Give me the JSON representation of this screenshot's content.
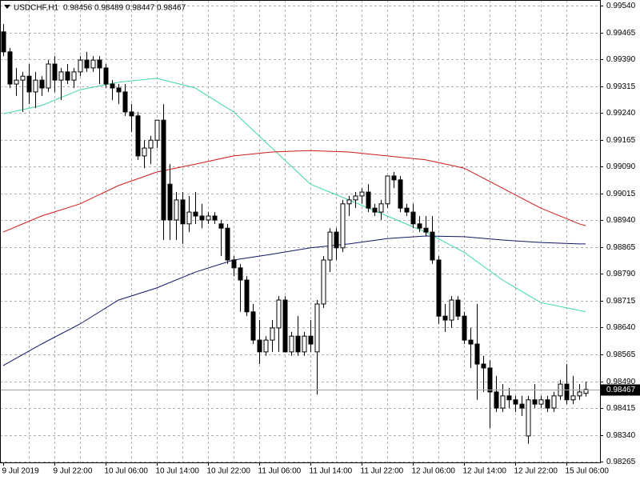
{
  "chart_data": {
    "type": "candlestick",
    "title": "USDCHF,H1",
    "categories": [
      "9 Jul 2019",
      null,
      null,
      null,
      null,
      null,
      null,
      null,
      "9 Jul 22:00",
      null,
      null,
      null,
      null,
      null,
      null,
      null,
      "10 Jul 06:00",
      null,
      null,
      null,
      null,
      null,
      null,
      null,
      "10 Jul 14:00",
      null,
      null,
      null,
      null,
      null,
      null,
      null,
      "10 Jul 22:00",
      null,
      null,
      null,
      null,
      null,
      null,
      null,
      "11 Jul 06:00",
      null,
      null,
      null,
      null,
      null,
      null,
      null,
      "11 Jul 14:00",
      null,
      null,
      null,
      null,
      null,
      null,
      null,
      "11 Jul 22:00",
      null,
      null,
      null,
      null,
      null,
      null,
      null,
      "12 Jul 06:00",
      null,
      null,
      null,
      null,
      null,
      null,
      null,
      "12 Jul 14:00",
      null,
      null,
      null,
      null,
      null,
      null,
      null,
      "12 Jul 22:00",
      null,
      null,
      null,
      null,
      null,
      null,
      null,
      "15 Jul 06:00",
      null,
      null,
      null
    ],
    "open": [
      0.99467,
      0.99411,
      0.99321,
      0.99332,
      0.99343,
      0.99299,
      0.99332,
      0.9931,
      0.99377,
      0.99332,
      0.99355,
      0.99332,
      0.99355,
      0.99388,
      0.99366,
      0.99388,
      0.99366,
      0.99321,
      0.9931,
      0.99299,
      0.99243,
      0.99232,
      0.9912,
      0.99142,
      0.99164,
      0.9922,
      0.99041,
      0.98941,
      0.98997,
      0.9893,
      0.98963,
      0.98952,
      0.98941,
      0.98952,
      0.9893,
      0.98918,
      0.98829,
      0.98807,
      0.98773,
      0.98684,
      0.98605,
      0.98572,
      0.98605,
      0.98639,
      0.98717,
      0.98572,
      0.98616,
      0.98572,
      0.98616,
      0.98572,
      0.98706,
      0.98829,
      0.98907,
      0.98863,
      0.98986,
      0.98997,
      0.99008,
      0.99019,
      0.98974,
      0.98963,
      0.98986,
      0.99064,
      0.99053,
      0.98974,
      0.98963,
      0.9893,
      0.98918,
      0.98907,
      0.98829,
      0.98672,
      0.98661,
      0.98717,
      0.98672,
      0.98605,
      0.98594,
      0.98538,
      0.98527,
      0.9846,
      0.98415,
      0.98449,
      0.98438,
      0.98426,
      0.98337,
      0.98438,
      0.98426,
      0.98438,
      0.98415,
      0.98449,
      0.98482,
      0.98438,
      0.98449,
      0.98456
    ],
    "high": [
      0.99489,
      0.99422,
      0.99366,
      0.99355,
      0.99377,
      0.99355,
      0.99343,
      0.99388,
      0.99399,
      0.99366,
      0.99377,
      0.99366,
      0.99399,
      0.99411,
      0.99399,
      0.99399,
      0.99377,
      0.99332,
      0.99321,
      0.99321,
      0.99265,
      0.99243,
      0.99164,
      0.99176,
      0.9922,
      0.99265,
      0.99097,
      0.99019,
      0.99019,
      0.99008,
      0.99019,
      0.98986,
      0.98963,
      0.98963,
      0.98941,
      0.9893,
      0.9884,
      0.98818,
      0.98784,
      0.98706,
      0.98661,
      0.98616,
      0.98661,
      0.98728,
      0.98728,
      0.98628,
      0.98672,
      0.98628,
      0.98661,
      0.98717,
      0.9884,
      0.98918,
      0.98918,
      0.98997,
      0.99008,
      0.99019,
      0.9903,
      0.99041,
      0.98986,
      0.98997,
      0.99064,
      0.99075,
      0.99064,
      0.98986,
      0.98986,
      0.98952,
      0.98952,
      0.98952,
      0.9884,
      0.98706,
      0.98728,
      0.98728,
      0.98684,
      0.98639,
      0.98706,
      0.98561,
      0.98549,
      0.98505,
      0.98482,
      0.98471,
      0.98449,
      0.98449,
      0.98449,
      0.98482,
      0.98449,
      0.98449,
      0.9846,
      0.98494,
      0.98538,
      0.98505,
      0.98482,
      0.98489
    ],
    "low": [
      0.99399,
      0.9931,
      0.99288,
      0.99243,
      0.99265,
      0.99254,
      0.99288,
      0.99299,
      0.99299,
      0.99276,
      0.99321,
      0.9931,
      0.99343,
      0.99355,
      0.99355,
      0.99321,
      0.9931,
      0.99276,
      0.99265,
      0.99232,
      0.99187,
      0.99109,
      0.99086,
      0.99097,
      0.99142,
      0.98885,
      0.98885,
      0.98885,
      0.98874,
      0.98907,
      0.9893,
      0.98918,
      0.9893,
      0.9893,
      0.9884,
      0.98818,
      0.98784,
      0.98684,
      0.98672,
      0.98594,
      0.98538,
      0.98561,
      0.98572,
      0.98572,
      0.98572,
      0.98561,
      0.98561,
      0.98561,
      0.98572,
      0.98453,
      0.98695,
      0.98795,
      0.98829,
      0.98851,
      0.98952,
      0.98974,
      0.98986,
      0.98963,
      0.98952,
      0.98941,
      0.98974,
      0.9903,
      0.98963,
      0.98952,
      0.98918,
      0.98907,
      0.98896,
      0.98818,
      0.9865,
      0.98628,
      0.98639,
      0.98661,
      0.98594,
      0.98527,
      0.98438,
      0.9846,
      0.98359,
      0.98404,
      0.98404,
      0.98415,
      0.98404,
      0.98393,
      0.98315,
      0.98415,
      0.98415,
      0.98404,
      0.98404,
      0.98438,
      0.98426,
      0.98426,
      0.98438,
      0.98447
    ],
    "close": [
      0.99411,
      0.99321,
      0.99332,
      0.99343,
      0.99299,
      0.99332,
      0.9931,
      0.99377,
      0.99332,
      0.99355,
      0.99332,
      0.99355,
      0.99388,
      0.99366,
      0.99388,
      0.99366,
      0.99321,
      0.9931,
      0.99299,
      0.99243,
      0.99232,
      0.9912,
      0.99142,
      0.99164,
      0.9922,
      0.98941,
      0.98941,
      0.98997,
      0.9893,
      0.98963,
      0.98952,
      0.98941,
      0.98952,
      0.98941,
      0.98918,
      0.98829,
      0.98807,
      0.98773,
      0.98684,
      0.98605,
      0.98572,
      0.98605,
      0.98639,
      0.98717,
      0.98572,
      0.98616,
      0.98572,
      0.98616,
      0.98594,
      0.98706,
      0.98829,
      0.98907,
      0.98863,
      0.98986,
      0.98997,
      0.99008,
      0.99019,
      0.98974,
      0.98963,
      0.98986,
      0.99064,
      0.99053,
      0.98974,
      0.98963,
      0.9893,
      0.98918,
      0.98907,
      0.98829,
      0.98672,
      0.98661,
      0.98717,
      0.98672,
      0.98605,
      0.98594,
      0.98538,
      0.98527,
      0.9846,
      0.98415,
      0.98449,
      0.98438,
      0.98426,
      0.98415,
      0.98438,
      0.98426,
      0.98438,
      0.98415,
      0.98449,
      0.98482,
      0.98438,
      0.98449,
      0.9846,
      0.98467
    ],
    "lines": [
      {
        "color": "#40d8a0",
        "x": [
          0,
          6,
          12,
          18,
          24,
          30,
          36,
          42,
          48,
          54,
          60,
          66,
          72,
          78,
          84,
          90,
          91
        ],
        "values": [
          0.99238,
          0.99261,
          0.99305,
          0.99326,
          0.99337,
          0.9931,
          0.99243,
          0.99142,
          0.99041,
          0.98997,
          0.98952,
          0.98907,
          0.98851,
          0.98773,
          0.9871,
          0.98688,
          0.98684
        ]
      },
      {
        "color": "#d01818",
        "x": [
          0,
          6,
          12,
          18,
          24,
          30,
          36,
          42,
          48,
          54,
          60,
          66,
          72,
          78,
          84,
          90,
          91
        ],
        "values": [
          0.98907,
          0.98952,
          0.98986,
          0.99037,
          0.99075,
          0.99097,
          0.9912,
          0.99131,
          0.99135,
          0.99131,
          0.9912,
          0.99109,
          0.99086,
          0.9903,
          0.98974,
          0.9893,
          0.98925
        ]
      },
      {
        "color": "#101868",
        "x": [
          0,
          6,
          12,
          18,
          24,
          30,
          36,
          42,
          48,
          54,
          60,
          66,
          72,
          78,
          84,
          90,
          91
        ],
        "values": [
          0.98534,
          0.98594,
          0.9865,
          0.98717,
          0.98751,
          0.98795,
          0.98829,
          0.98845,
          0.98863,
          0.98874,
          0.98889,
          0.98896,
          0.98894,
          0.98885,
          0.98878,
          0.98874,
          0.98874
        ]
      }
    ],
    "ylim": [
      0.98263,
      0.99556
    ],
    "yticks": [
      {
        "value": 0.9954,
        "label": "0.99540"
      },
      0.99465,
      {
        "value": 0.9939,
        "label": "0.99390"
      },
      0.99315,
      {
        "value": 0.9924,
        "label": "0.99240"
      },
      0.99165,
      {
        "value": 0.9909,
        "label": "0.99090"
      },
      0.99015,
      {
        "value": 0.9894,
        "label": "0.98940"
      },
      0.98865,
      {
        "value": 0.9879,
        "label": "0.98790"
      },
      0.98715,
      {
        "value": 0.9864,
        "label": "0.98640"
      },
      0.98565,
      {
        "value": 0.9849,
        "label": "0.98490"
      },
      0.98415,
      {
        "value": 0.9834,
        "label": "0.98340"
      },
      0.98265
    ],
    "grid": true,
    "bull_color": "#ffffff",
    "bear_color": "#000000"
  }
}
